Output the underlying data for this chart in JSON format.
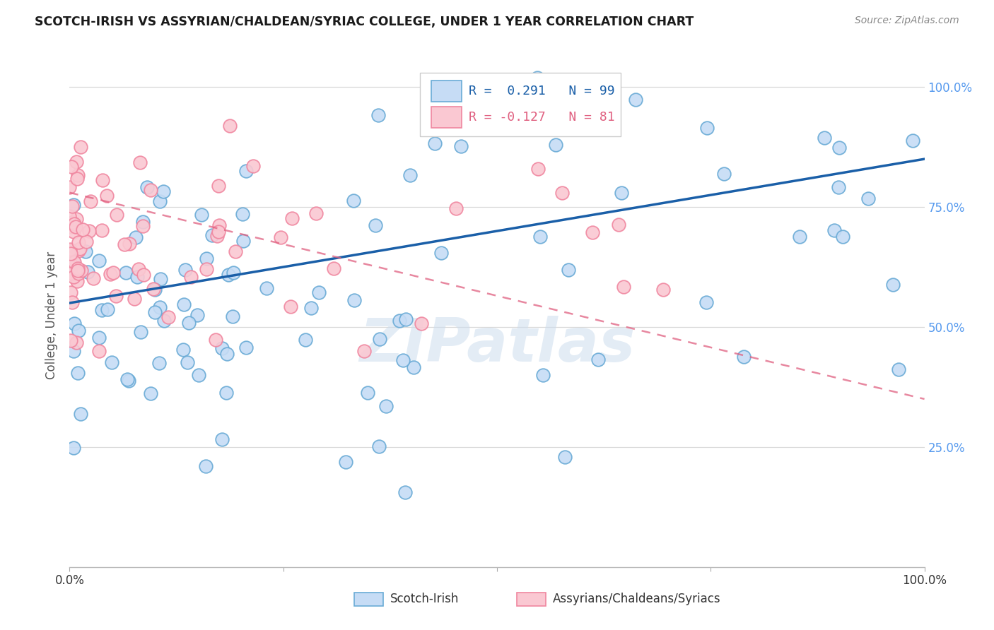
{
  "title": "SCOTCH-IRISH VS ASSYRIAN/CHALDEAN/SYRIAC COLLEGE, UNDER 1 YEAR CORRELATION CHART",
  "source": "Source: ZipAtlas.com",
  "ylabel": "College, Under 1 year",
  "legend1_label": "Scotch-Irish",
  "legend2_label": "Assyrians/Chaldeans/Syriacs",
  "R_blue": 0.291,
  "N_blue": 99,
  "R_pink": -0.127,
  "N_pink": 81,
  "blue_face": "#c6dcf5",
  "blue_edge": "#6aabd6",
  "pink_face": "#fac8d2",
  "pink_edge": "#f087a0",
  "blue_line_color": "#1a5fa8",
  "pink_line_color": "#e06080",
  "grid_color": "#d8d8d8",
  "bg_color": "#ffffff",
  "right_tick_color": "#5599ee"
}
